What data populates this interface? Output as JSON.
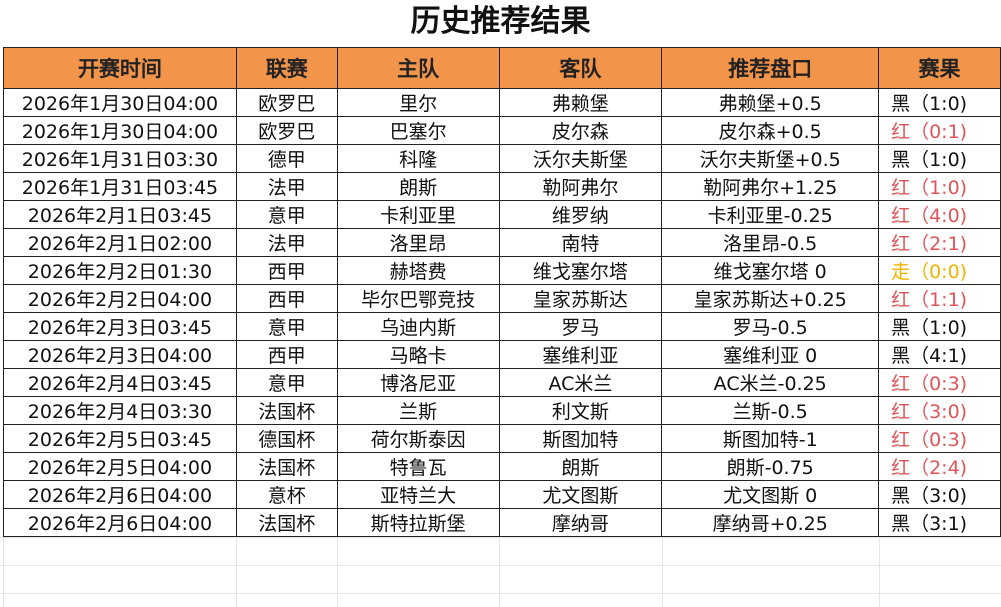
{
  "title": "历史推荐结果",
  "headers": [
    "开赛时间",
    "联赛",
    "主队",
    "客队",
    "推荐盘口",
    "赛果"
  ],
  "result_colors": {
    "红": "#e0555a",
    "走": "#f0b400",
    "黑": "#111111"
  },
  "rows": [
    [
      "2026年1月30日04:00",
      "欧罗巴",
      "里尔",
      "弗赖堡",
      "弗赖堡+0.5",
      "黑（1:0)"
    ],
    [
      "2026年1月30日04:00",
      "欧罗巴",
      "巴塞尔",
      "皮尔森",
      "皮尔森+0.5",
      "红（0:1)"
    ],
    [
      "2026年1月31日03:30",
      "德甲",
      "科隆",
      "沃尔夫斯堡",
      "沃尔夫斯堡+0.5",
      "黑（1:0)"
    ],
    [
      "2026年1月31日03:45",
      "法甲",
      "朗斯",
      "勒阿弗尔",
      "勒阿弗尔+1.25",
      "红（1:0)"
    ],
    [
      "2026年2月1日03:45",
      "意甲",
      "卡利亚里",
      "维罗纳",
      "卡利亚里-0.25",
      "红（4:0)"
    ],
    [
      "2026年2月1日02:00",
      "法甲",
      "洛里昂",
      "南特",
      "洛里昂-0.5",
      "红（2:1)"
    ],
    [
      "2026年2月2日01:30",
      "西甲",
      "赫塔费",
      "维戈塞尔塔",
      "维戈塞尔塔 0",
      "走（0:0)"
    ],
    [
      "2026年2月2日04:00",
      "西甲",
      "毕尔巴鄂竞技",
      "皇家苏斯达",
      "皇家苏斯达+0.25",
      "红（1:1)"
    ],
    [
      "2026年2月3日03:45",
      "意甲",
      "乌迪内斯",
      "罗马",
      "罗马-0.5",
      "黑（1:0)"
    ],
    [
      "2026年2月3日04:00",
      "西甲",
      "马略卡",
      "塞维利亚",
      "塞维利亚 0",
      "黑（4:1)"
    ],
    [
      "2026年2月4日03:45",
      "意甲",
      "博洛尼亚",
      "AC米兰",
      "AC米兰-0.25",
      "红（0:3)"
    ],
    [
      "2026年2月4日03:30",
      "法国杯",
      "兰斯",
      "利文斯",
      "兰斯-0.5",
      "红（3:0)"
    ],
    [
      "2026年2月5日03:45",
      "德国杯",
      "荷尔斯泰因",
      "斯图加特",
      "斯图加特-1",
      "红（0:3)"
    ],
    [
      "2026年2月5日04:00",
      "法国杯",
      "特鲁瓦",
      "朗斯",
      "朗斯-0.75",
      "红（2:4)"
    ],
    [
      "2026年2月6日04:00",
      "意杯",
      "亚特兰大",
      "尤文图斯",
      "尤文图斯 0",
      "黑（3:0)"
    ],
    [
      "2026年2月6日04:00",
      "法国杯",
      "斯特拉斯堡",
      "摩纳哥",
      "摩纳哥+0.25",
      "黑（3:1)"
    ]
  ]
}
